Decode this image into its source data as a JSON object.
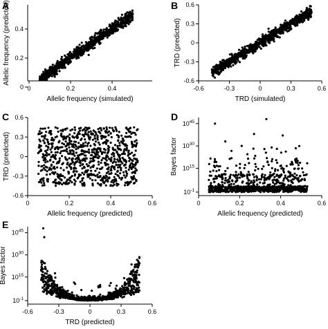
{
  "figure": {
    "panels": [
      "A",
      "B",
      "C",
      "D",
      "E"
    ]
  },
  "chart_data": [
    {
      "id": "A",
      "type": "scatter",
      "panel_label": "A",
      "xlabel": "Allelic frequency (simulated)",
      "ylabel": "Allelic frequency (predicted)",
      "xlim": [
        0,
        0.6
      ],
      "ylim": [
        0,
        0.6
      ],
      "xticks": [
        0,
        0.2,
        0.4
      ],
      "xtick_labels": [
        "0",
        "0.2",
        "0.4"
      ],
      "yticks": [
        0,
        0.2,
        0.4
      ],
      "ytick_labels": [
        "0",
        "0.2",
        "0.4"
      ],
      "point_count": 900,
      "x_range": [
        0.05,
        0.5
      ],
      "relation": "y ≈ x, residual sd ≈ 0.02",
      "sample_points": [
        [
          0.05,
          0.06
        ],
        [
          0.1,
          0.1
        ],
        [
          0.2,
          0.2
        ],
        [
          0.3,
          0.3
        ],
        [
          0.4,
          0.4
        ],
        [
          0.5,
          0.52
        ]
      ]
    },
    {
      "id": "B",
      "type": "scatter",
      "panel_label": "B",
      "xlabel": "TRD (simulated)",
      "ylabel": "TRD (predicted)",
      "xlim": [
        -0.6,
        0.6
      ],
      "ylim": [
        -0.6,
        0.6
      ],
      "xticks": [
        -0.6,
        -0.3,
        0,
        0.3,
        0.6
      ],
      "xtick_labels": [
        "-0.6",
        "-0.3",
        "0",
        "0.3",
        "0.6"
      ],
      "yticks": [
        -0.6,
        -0.3,
        0,
        0.3,
        0.6
      ],
      "ytick_labels": [
        "-0.6",
        "-0.3",
        "0",
        "0.3",
        "0.6"
      ],
      "point_count": 900,
      "x_range": [
        -0.47,
        0.5
      ],
      "relation": "y ≈ x, residual sd ≈ 0.04",
      "sample_points": [
        [
          -0.45,
          -0.45
        ],
        [
          -0.3,
          -0.3
        ],
        [
          0,
          0
        ],
        [
          0.3,
          0.3
        ],
        [
          0.5,
          0.5
        ]
      ]
    },
    {
      "id": "C",
      "type": "scatter",
      "panel_label": "C",
      "xlabel": "Allelic frequency (predicted)",
      "ylabel": "TRD (predicted)",
      "xlim": [
        0,
        0.6
      ],
      "ylim": [
        -0.6,
        0.6
      ],
      "xticks": [
        0,
        0.2,
        0.4,
        0.6
      ],
      "xtick_labels": [
        "0",
        "0.2",
        "0.4",
        "0.6"
      ],
      "yticks": [
        -0.6,
        -0.3,
        0,
        0.3,
        0.6
      ],
      "ytick_labels": [
        "-0.6",
        "-0.3",
        "0",
        "0.3",
        "0.6"
      ],
      "point_count": 900,
      "x_range": [
        0.05,
        0.53
      ],
      "y_range": [
        -0.45,
        0.45
      ],
      "relation": "uniform, no correlation"
    },
    {
      "id": "D",
      "type": "scatter",
      "panel_label": "D",
      "xlabel": "Allelic frequency (predicted)",
      "ylabel": "Bayes factor",
      "y_scale": "log10",
      "xlim": [
        0,
        0.6
      ],
      "ylim_log10": [
        -1.5,
        50
      ],
      "xticks": [
        0,
        0.2,
        0.4,
        0.6
      ],
      "xtick_labels": [
        "0",
        "0.2",
        "0.4",
        "0.6"
      ],
      "yticks_log10": [
        -1,
        15,
        30,
        45
      ],
      "ytick_labels": [
        {
          "base": "10",
          "exp": "-1"
        },
        {
          "base": "10",
          "exp": "15"
        },
        {
          "base": "10",
          "exp": "30"
        },
        {
          "base": "10",
          "exp": "45"
        }
      ],
      "point_count": 900,
      "x_range": [
        0.05,
        0.53
      ],
      "relation": "most log10 BF between -1 and 10; sparse outliers up to ~10^48",
      "outliers": [
        [
          0.33,
          48
        ],
        [
          0.08,
          45
        ],
        [
          0.27,
          38
        ],
        [
          0.41,
          37
        ],
        [
          0.13,
          33
        ],
        [
          0.21,
          30
        ]
      ]
    },
    {
      "id": "E",
      "type": "scatter",
      "panel_label": "E",
      "xlabel": "TRD (predicted)",
      "ylabel": "Bayes factor",
      "y_scale": "log10",
      "xlim": [
        -0.6,
        0.6
      ],
      "ylim_log10": [
        -1.5,
        50
      ],
      "xticks": [
        -0.6,
        -0.3,
        0,
        0.3,
        0.6
      ],
      "xtick_labels": [
        "-0.6",
        "-0.3",
        "0",
        "0.3",
        "0.6"
      ],
      "yticks_log10": [
        -1,
        15,
        30,
        45
      ],
      "ytick_labels": [
        {
          "base": "10",
          "exp": "-1"
        },
        {
          "base": "10",
          "exp": "15"
        },
        {
          "base": "10",
          "exp": "30"
        },
        {
          "base": "10",
          "exp": "45"
        }
      ],
      "point_count": 900,
      "x_range": [
        -0.47,
        0.48
      ],
      "relation": "U-shaped: log10 BF ≈ 0 near TRD 0, rising toward both ends",
      "outliers": [
        [
          -0.45,
          48
        ],
        [
          -0.44,
          42
        ],
        [
          0.47,
          25
        ],
        [
          0.45,
          22
        ]
      ]
    }
  ]
}
